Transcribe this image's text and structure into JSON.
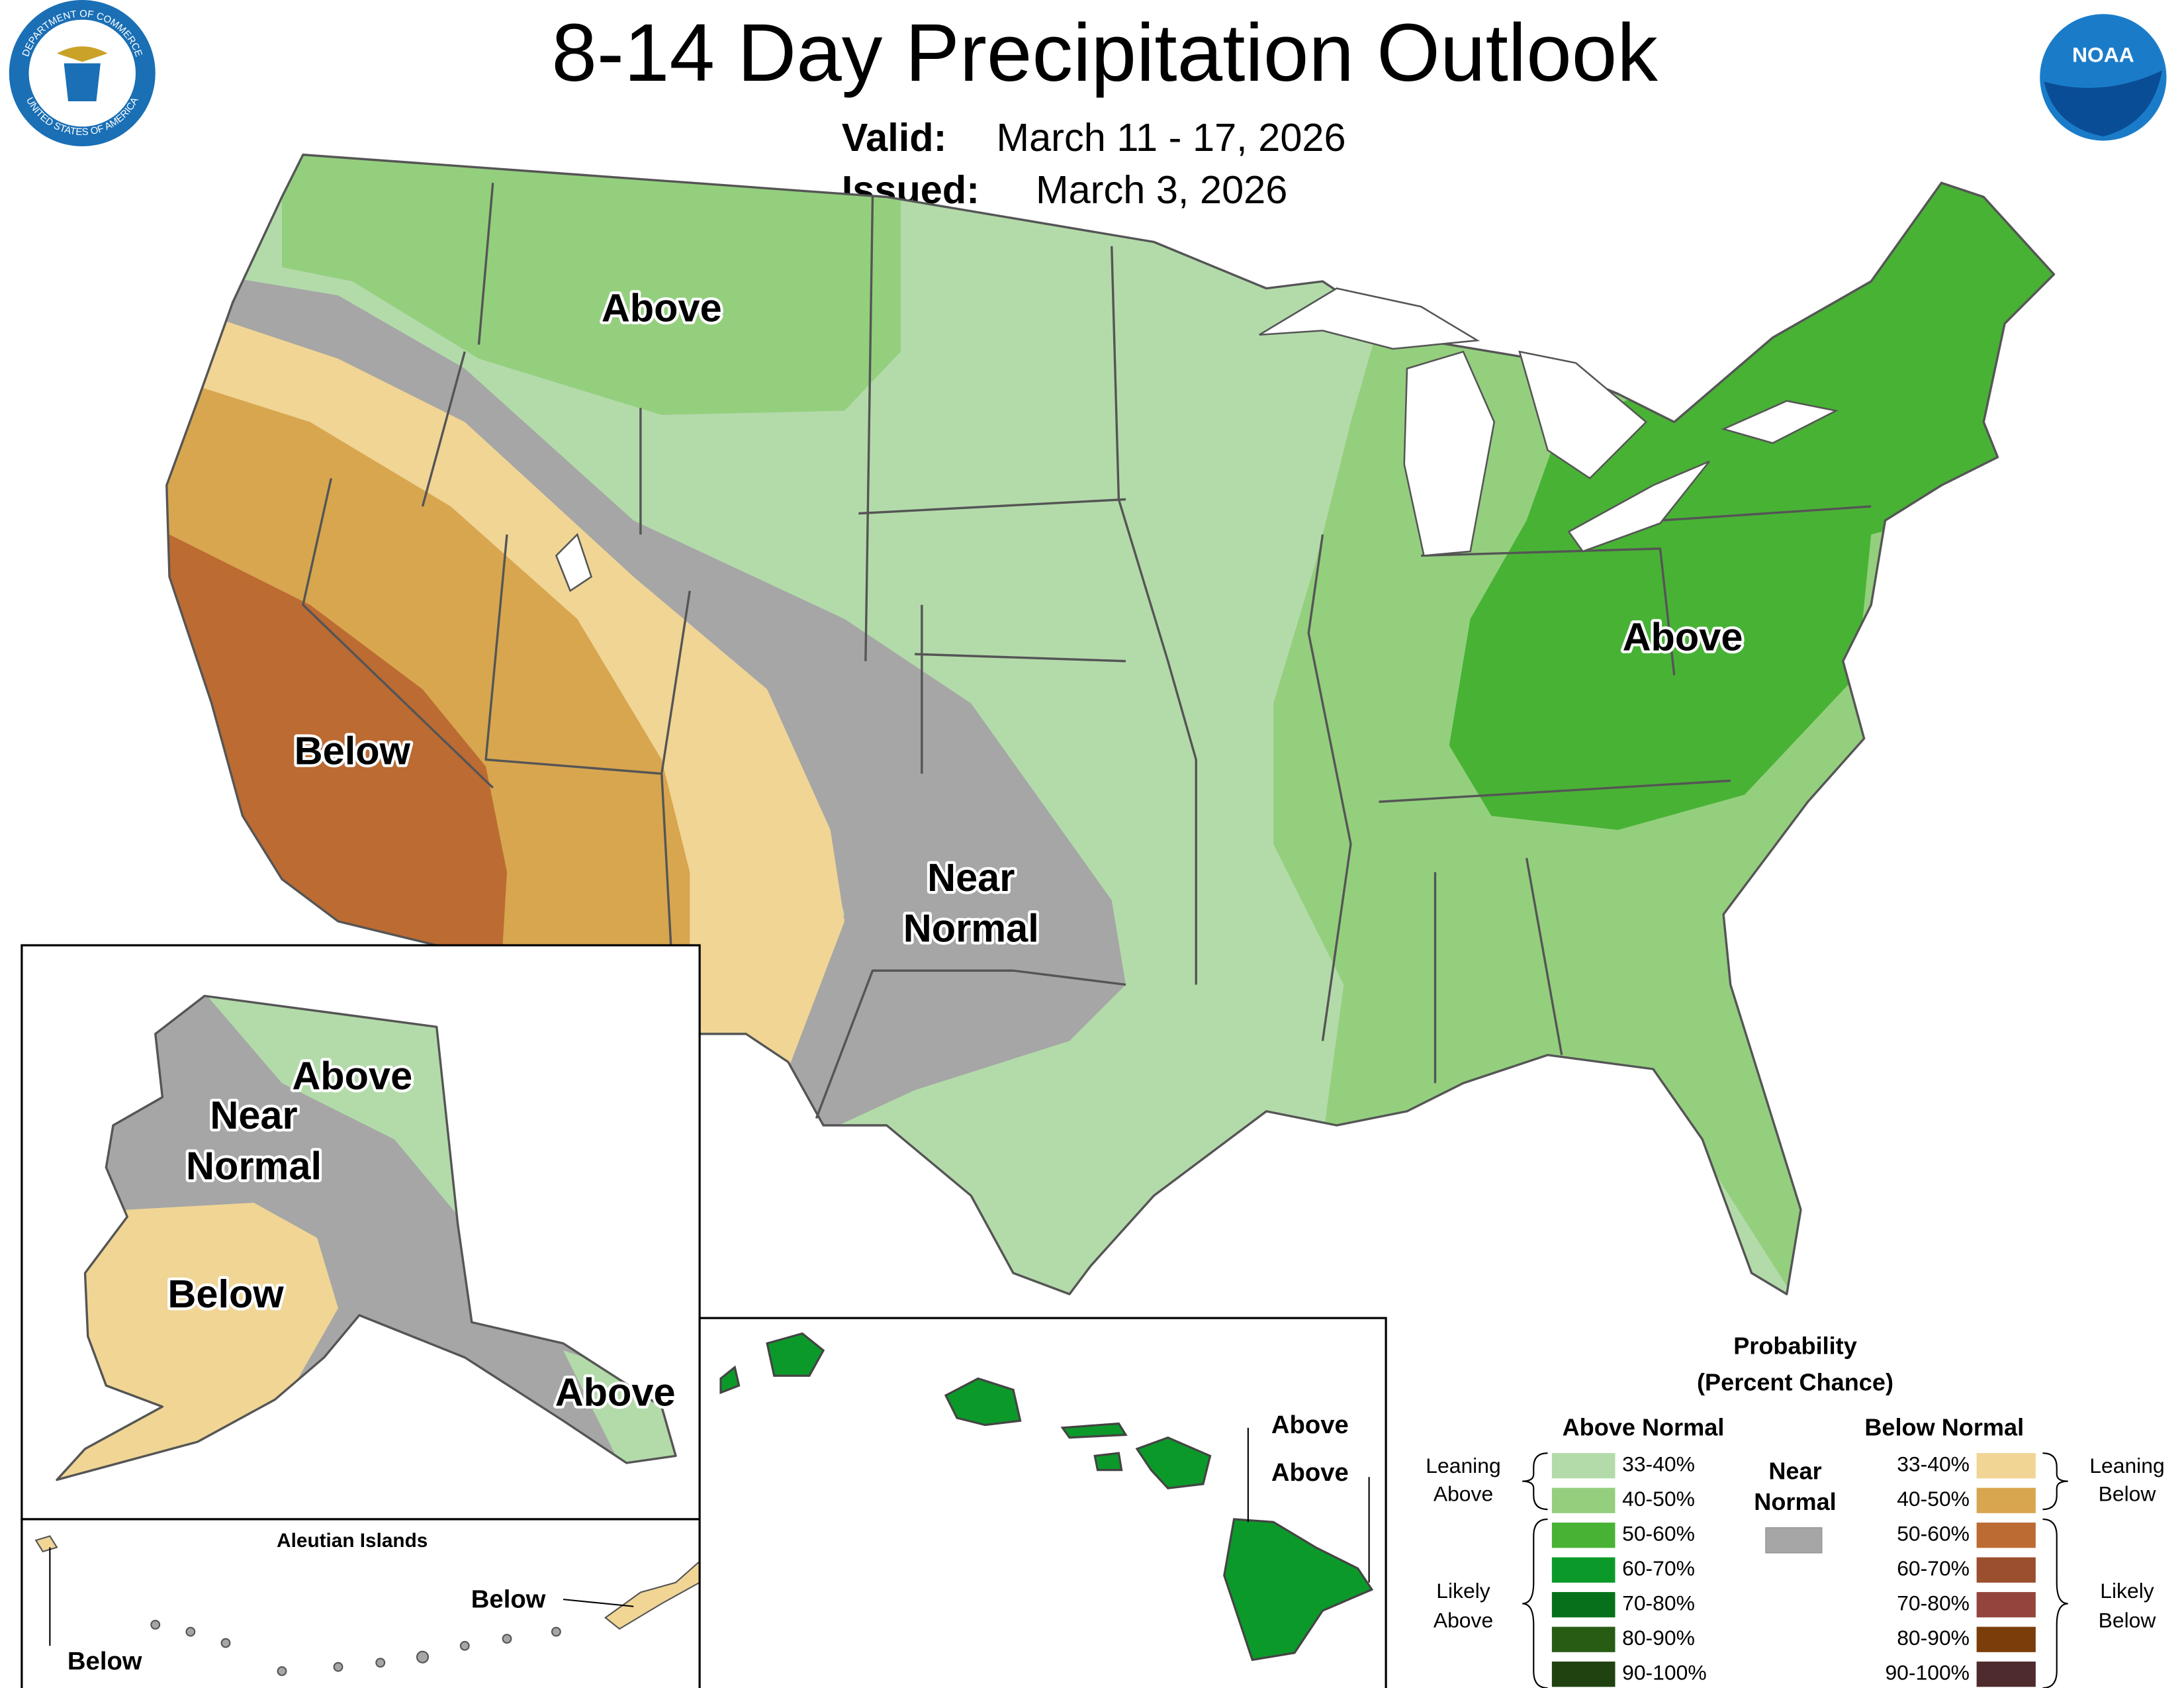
{
  "header": {
    "title": "8-14 Day Precipitation Outlook",
    "valid_label": "Valid:",
    "valid": "March 11 - 17, 2026",
    "issued_label": "Issued:",
    "issued": "March 3, 2026"
  },
  "logos": {
    "commerce_top": "DEPARTMENT OF COMMERCE",
    "commerce_bottom": "UNITED STATES OF AMERICA",
    "noaa": "NOAA"
  },
  "conus_labels": {
    "northwest": "Above",
    "southwest": "Below",
    "near_normal": [
      "Near",
      "Normal"
    ],
    "northeast": "Above"
  },
  "alaska_labels": {
    "north": "Above",
    "near_normal": [
      "Near",
      "Normal"
    ],
    "southwest": "Below",
    "southeast": "Above"
  },
  "aleutian": {
    "title": "Aleutian Islands",
    "east": "Below",
    "west": "Below"
  },
  "hawaii_labels": [
    "Above",
    "Above"
  ],
  "legend": {
    "title": [
      "Probability",
      "(Percent Chance)"
    ],
    "above_normal": {
      "title": "Above Normal",
      "rows": [
        {
          "range": "33-40%",
          "color": "#b3dbaa"
        },
        {
          "range": "40-50%",
          "color": "#94cf7e"
        },
        {
          "range": "50-60%",
          "color": "#48b235"
        },
        {
          "range": "60-70%",
          "color": "#0b9a2a"
        },
        {
          "range": "70-80%",
          "color": "#06711a"
        },
        {
          "range": "80-90%",
          "color": "#285b14"
        },
        {
          "range": "90-100%",
          "color": "#1f4210"
        }
      ]
    },
    "near_normal": {
      "title": [
        "Near",
        "Normal"
      ],
      "color": "#a6a6a6"
    },
    "below_normal": {
      "title": "Below Normal",
      "rows": [
        {
          "range": "33-40%",
          "color": "#f0d595"
        },
        {
          "range": "40-50%",
          "color": "#d8a64f"
        },
        {
          "range": "50-60%",
          "color": "#bc6b33"
        },
        {
          "range": "60-70%",
          "color": "#9c4f2e"
        },
        {
          "range": "70-80%",
          "color": "#93453d"
        },
        {
          "range": "80-90%",
          "color": "#7b3d0a"
        },
        {
          "range": "90-100%",
          "color": "#4e2b2d"
        }
      ]
    },
    "brackets": {
      "leaning_above": [
        "Leaning",
        "Above"
      ],
      "likely_above": [
        "Likely",
        "Above"
      ],
      "leaning_below": [
        "Leaning",
        "Below"
      ],
      "likely_below": [
        "Likely",
        "Below"
      ]
    }
  }
}
